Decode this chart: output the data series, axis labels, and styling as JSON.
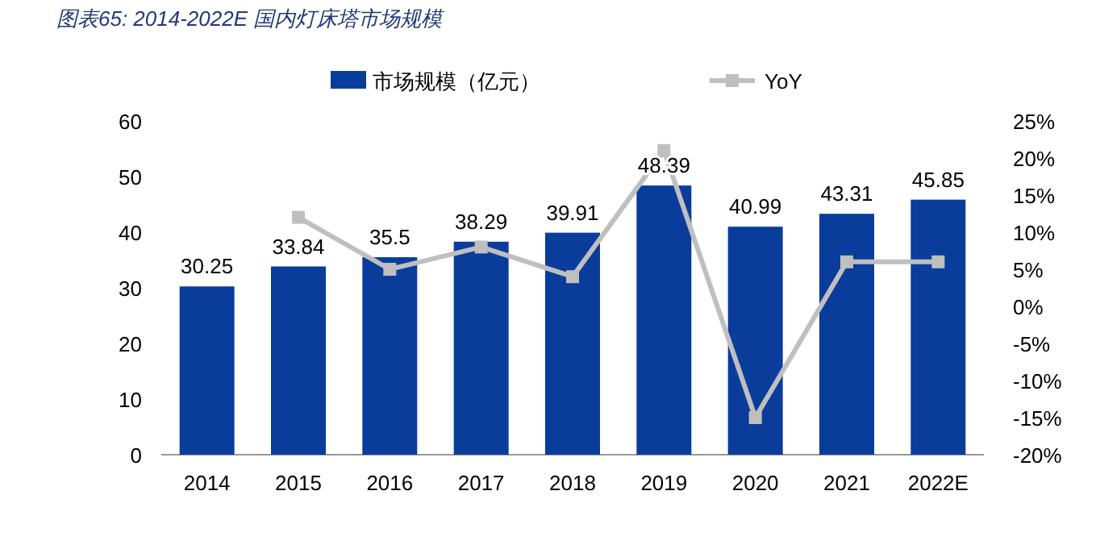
{
  "chart_data": {
    "type": "bar",
    "title": "图表65:  2014-2022E 国内灯床塔市场规模",
    "categories": [
      "2014",
      "2015",
      "2016",
      "2017",
      "2018",
      "2019",
      "2020",
      "2021",
      "2022E"
    ],
    "series": [
      {
        "name": "市场规模（亿元）",
        "color": "#0a3d9b",
        "values": [
          30.25,
          33.84,
          35.5,
          38.29,
          39.91,
          48.39,
          40.99,
          43.31,
          45.85
        ],
        "value_labels": [
          "30.25",
          "33.84",
          "35.5",
          "38.29",
          "39.91",
          "48.39",
          "40.99",
          "43.31",
          "45.85"
        ]
      },
      {
        "name": "YoY",
        "type": "line",
        "axis": "y2",
        "color": "#bfbfbf",
        "marker": "square",
        "values": [
          null,
          12,
          5,
          8,
          4,
          21,
          -15,
          6,
          6
        ]
      }
    ],
    "ylim": [
      0,
      60
    ],
    "yticks": [
      0,
      10,
      20,
      30,
      40,
      50,
      60
    ],
    "y2lim": [
      -20,
      25
    ],
    "y2ticks": [
      {
        "value": 25,
        "label": "25%"
      },
      {
        "value": 20,
        "label": "20%"
      },
      {
        "value": 15,
        "label": "15%"
      },
      {
        "value": 10,
        "label": "10%"
      },
      {
        "value": 5,
        "label": "5%"
      },
      {
        "value": 0,
        "label": "0%"
      },
      {
        "value": -5,
        "label": "-5%"
      },
      {
        "value": -10,
        "label": "-10%"
      },
      {
        "value": -15,
        "label": "-15%"
      },
      {
        "value": -20,
        "label": "-20%"
      }
    ],
    "legend": "top",
    "grid": false
  }
}
